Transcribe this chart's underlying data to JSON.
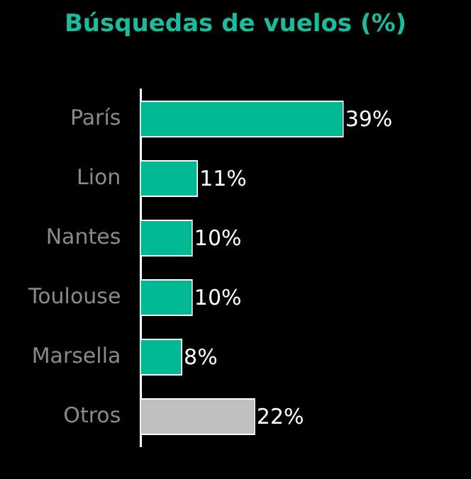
{
  "chart_data": {
    "type": "bar",
    "orientation": "horizontal",
    "title": "Búsquedas de vuelos (%)",
    "categories": [
      "París",
      "Lion",
      "Nantes",
      "Toulouse",
      "Marsella",
      "Otros"
    ],
    "values": [
      39,
      11,
      10,
      10,
      8,
      22
    ],
    "colors": [
      "#00b894",
      "#00b894",
      "#00b894",
      "#00b894",
      "#00b894",
      "#c0c0c0"
    ],
    "value_labels": [
      "39%",
      "11%",
      "10%",
      "10%",
      "8%",
      "22%"
    ],
    "tick_labels": "y",
    "legend": false
  }
}
